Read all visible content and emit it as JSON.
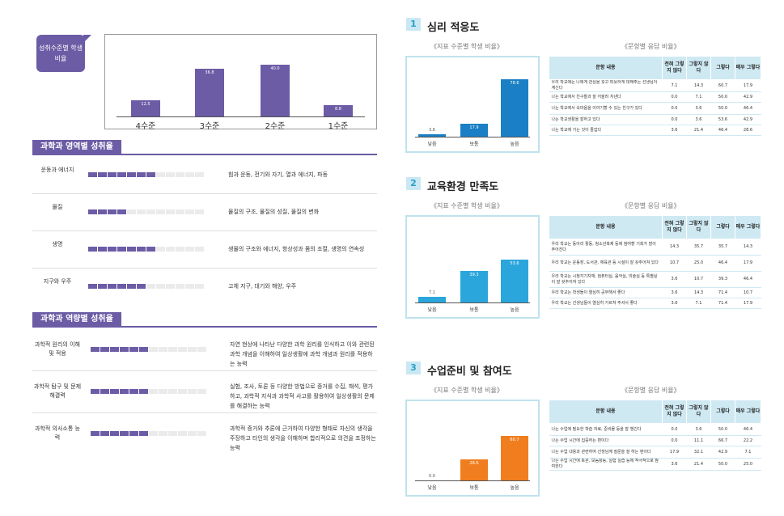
{
  "level_section": {
    "tag": "성취수준별 학생 비율",
    "chart_data": {
      "type": "bar",
      "categories": [
        "4수준",
        "3수준",
        "2수준",
        "1수준"
      ],
      "values": [
        12.5,
        36.8,
        40.0,
        8.8
      ],
      "ylim": [
        0,
        50
      ]
    }
  },
  "area_section": {
    "title": "과학과 영역별 성취율",
    "rows": [
      {
        "label": "운동과 에너지",
        "filled": 7,
        "desc": "힘과 운동, 전기와 자기, 열과 에너지, 파동"
      },
      {
        "label": "물질",
        "filled": 4,
        "desc": "물질의 구조, 물질의 성질, 물질의 변화"
      },
      {
        "label": "생명",
        "filled": 7,
        "desc": "생물의 구조와 에너지, 항상성과 몸의 조절, 생명의 연속성"
      },
      {
        "label": "지구와 우주",
        "filled": 6,
        "desc": "고체 지구, 대기와 해양, 우주"
      }
    ]
  },
  "competency_section": {
    "title": "과학과 역량별 성취율",
    "rows": [
      {
        "label": "과학적 원리의 이해 및 적용",
        "filled": 6,
        "desc": "자연 현상에 나타난 다양한 과학 원리를 인식하고 이와 관련된 과학 개념을 이해하여 일상생활에 과학 개념과 원리를 적용하는 능력"
      },
      {
        "label": "과학적 탐구 및 문제 해결력",
        "filled": 6,
        "desc": "실험, 조사, 토론 등 다양한 방법으로 증거를 수집, 해석, 평가하고, 과학적 지식과 과학적 사고를 활용하여 일상생활의 문제를 해결하는 능력"
      },
      {
        "label": "과학적 의사소통 능력",
        "filled": 6,
        "desc": "과학적 증거와 추론에 근거하여 다양한 형태로 자신의 생각을 주장하고 타인의 생각을 이해하며 합리적으로 의견을 조정하는 능력"
      }
    ]
  },
  "right_common": {
    "chart_caption": "《지표 수준별 학생 비율》",
    "table_caption": "《문항별 응답 비율》",
    "headers": [
      "문항 내용",
      "전혀 그렇지 않다",
      "그렇지 않다",
      "그렇다",
      "매우 그렇다"
    ],
    "categories": [
      "낮음",
      "보통",
      "높음"
    ]
  },
  "sections": [
    {
      "num": "1",
      "title": "심리 적응도",
      "color": "#1a7fc4",
      "chart_data": {
        "type": "bar",
        "categories": [
          "낮음",
          "보통",
          "높음"
        ],
        "values": [
          3.6,
          17.9,
          78.6
        ],
        "ylim": [
          0,
          100
        ]
      },
      "rows": [
        {
          "q": "우리 학교에는 나에게 관심을 갖고 따뜻하게 대해주는 선생님이 계신다",
          "v": [
            "7.1",
            "14.3",
            "60.7",
            "17.9"
          ]
        },
        {
          "q": "나는 학교에서 친구들과 잘 어울려 지낸다",
          "v": [
            "0.0",
            "7.1",
            "50.0",
            "42.9"
          ]
        },
        {
          "q": "나는 학교에서 속마음을 이야기할 수 있는 친구가 있다",
          "v": [
            "0.0",
            "3.6",
            "50.0",
            "46.4"
          ]
        },
        {
          "q": "나는 학교생활을 잘하고 있다",
          "v": [
            "0.0",
            "3.6",
            "53.6",
            "42.9"
          ]
        },
        {
          "q": "나는 학교에 가는 것이 즐겁다",
          "v": [
            "3.6",
            "21.4",
            "46.4",
            "28.6"
          ]
        }
      ]
    },
    {
      "num": "2",
      "title": "교육환경 만족도",
      "color": "#2aa6dc",
      "chart_data": {
        "type": "bar",
        "categories": [
          "낮음",
          "보통",
          "높음"
        ],
        "values": [
          7.1,
          39.3,
          53.6
        ],
        "ylim": [
          0,
          100
        ]
      },
      "rows": [
        {
          "q": "우리 학교는 동아리 활동, 청소년축제 등에 참여할 기회가 많이 주어진다",
          "v": [
            "14.3",
            "35.7",
            "35.7",
            "14.3"
          ]
        },
        {
          "q": "우리 학교는 운동장, 도서관, 체육관 등 시설이 잘 갖추어져 있다",
          "v": [
            "10.7",
            "25.0",
            "46.4",
            "17.9"
          ]
        },
        {
          "q": "우리 학교는 시청각기자재, 컴퓨터실, 음악실, 미술실 등 특별실이 잘 갖추어져 있다",
          "v": [
            "3.6",
            "10.7",
            "39.3",
            "46.4"
          ]
        },
        {
          "q": "우리 학교는 학생들이 열심히 공부해서 좋다",
          "v": [
            "3.6",
            "14.3",
            "71.4",
            "10.7"
          ]
        },
        {
          "q": "우리 학교는 선생님들이 열심히 가르쳐 주셔서 좋다",
          "v": [
            "3.6",
            "7.1",
            "71.4",
            "17.9"
          ]
        }
      ]
    },
    {
      "num": "3",
      "title": "수업준비 및 참여도",
      "color": "#f07e1e",
      "chart_data": {
        "type": "bar",
        "categories": [
          "낮음",
          "보통",
          "높음"
        ],
        "values": [
          0.0,
          28.6,
          60.7
        ],
        "ylim": [
          0,
          100
        ]
      },
      "rows": [
        {
          "q": "나는 수업에 필요한 학습 자료, 준비물 등을 잘 챙긴다",
          "v": [
            "0.0",
            "3.6",
            "50.0",
            "46.4"
          ]
        },
        {
          "q": "나는 수업 시간에 집중하는 편이다",
          "v": [
            "0.0",
            "11.1",
            "66.7",
            "22.2"
          ]
        },
        {
          "q": "나는 수업 내용과 관련하여 선생님께 질문을 잘 하는 편이다",
          "v": [
            "17.9",
            "32.1",
            "42.9",
            "7.1"
          ]
        },
        {
          "q": "나는 수업 시간에 토론, 모둠활동, 실험 실습 등에 적극적으로 참여한다",
          "v": [
            "3.6",
            "21.4",
            "50.0",
            "25.0"
          ]
        }
      ]
    }
  ]
}
